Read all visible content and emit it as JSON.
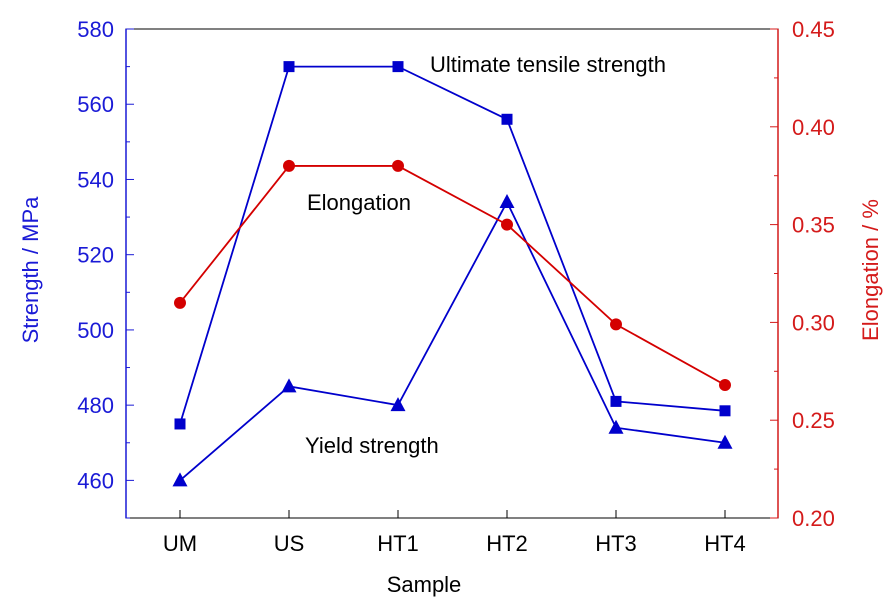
{
  "chart_data": {
    "type": "line",
    "categories": [
      "UM",
      "US",
      "HT1",
      "HT2",
      "HT3",
      "HT4"
    ],
    "xlabel": "Sample",
    "ylabel_left": "Strength / MPa",
    "ylabel_right": "Elongation / %",
    "ylim_left": [
      450,
      580
    ],
    "ylim_right": [
      0.2,
      0.45
    ],
    "yticks_left": [
      "460",
      "480",
      "500",
      "520",
      "540",
      "560",
      "580"
    ],
    "yticks_right": [
      "0.20",
      "0.25",
      "0.30",
      "0.35",
      "0.40",
      "0.45"
    ],
    "grid": false,
    "colors": {
      "left_axis": "#1a1ad6",
      "right_axis": "#d41a1a",
      "blue_series": "#0000cc",
      "red_series": "#d40000"
    },
    "series": [
      {
        "name": "Ultimate tensile strength",
        "axis": "left",
        "marker": "square",
        "color": "#0000cc",
        "values": [
          475,
          570,
          570,
          556,
          481,
          478.5
        ]
      },
      {
        "name": "Yield strength",
        "axis": "left",
        "marker": "triangle",
        "color": "#0000cc",
        "values": [
          460,
          485,
          480,
          534,
          474,
          470
        ]
      },
      {
        "name": "Elongation",
        "axis": "right",
        "marker": "circle",
        "color": "#d40000",
        "values": [
          0.31,
          0.38,
          0.38,
          0.35,
          0.299,
          0.268
        ]
      }
    ],
    "annotations": [
      "Ultimate tensile strength",
      "Elongation",
      "Yield strength"
    ]
  }
}
